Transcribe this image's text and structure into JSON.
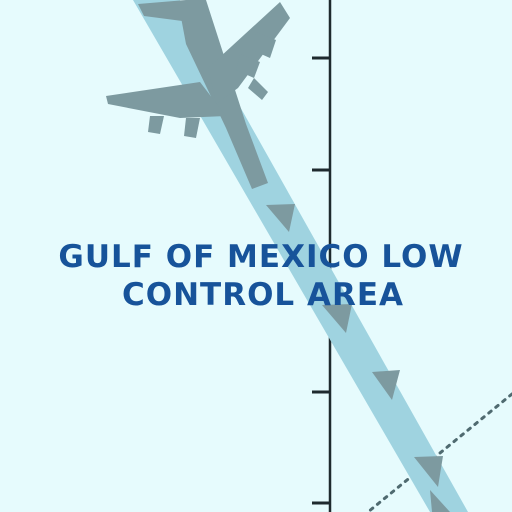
{
  "map": {
    "area_label": {
      "line_1": "GULF OF MEXICO LOW",
      "line_2": "CONTROL AREA"
    },
    "colors": {
      "background": "#e6fbfd",
      "route": "#9fd3e0",
      "aircraft": "#7d9aa0",
      "label": "#17539a",
      "boundary_line": "#1e2a2e",
      "dotted_line": "#4f6a70"
    },
    "icons": [
      "airplane-icon",
      "route-arrow-icon"
    ]
  }
}
